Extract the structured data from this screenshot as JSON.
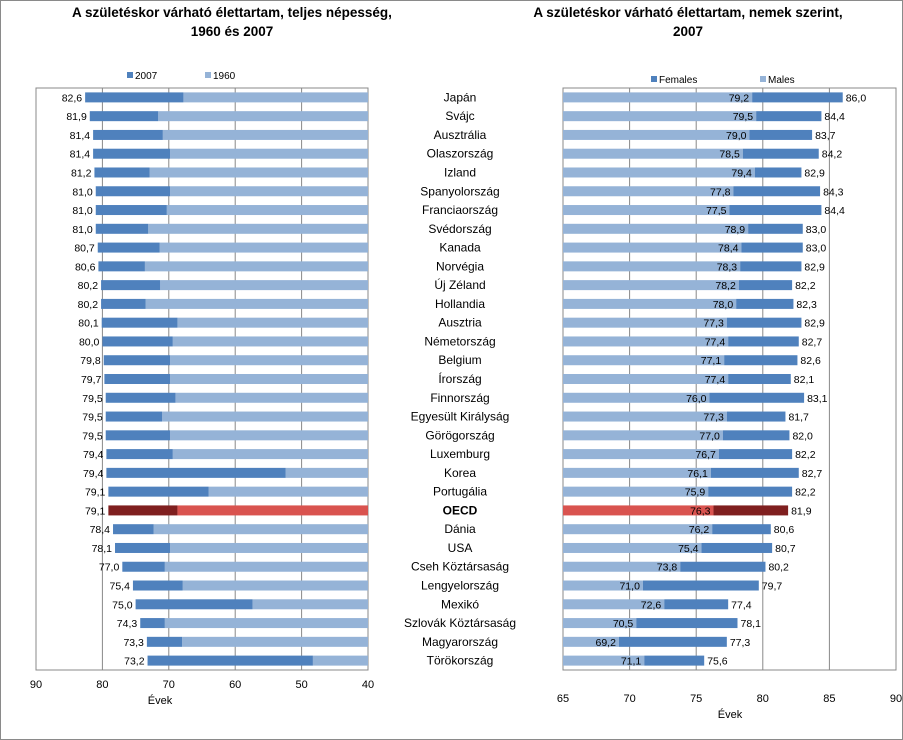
{
  "chart_data": [
    {
      "type": "bar",
      "title": "A születéskor várható élettartam, teljes népesség, 1960 és 2007",
      "title_lines": [
        "A születéskor várható élettartam, teljes népesség,",
        "1960 és 2007"
      ],
      "xlabel": "Évek",
      "xlim": [
        90,
        40
      ],
      "xticks": [
        90,
        80,
        70,
        60,
        50,
        40
      ],
      "legend_position": "top",
      "grid": true,
      "colors": {
        "2007": "#4f81bd",
        "1960": "#95b3d7",
        "highlight_2007": "#7f1f1f",
        "highlight_1960": "#d9534f"
      },
      "categories": [
        "Japán",
        "Svájc",
        "Ausztrália",
        "Olaszország",
        "Izland",
        "Spanyolország",
        "Franciaország",
        "Svédország",
        "Kanada",
        "Norvégia",
        "Új Zéland",
        "Hollandia",
        "Ausztria",
        "Németország",
        "Belgium",
        "Írország",
        "Finnország",
        "Egyesült Királyság",
        "Görögország",
        "Luxemburg",
        "Korea",
        "Portugália",
        "OECD",
        "Dánia",
        "USA",
        "Cseh Köztársaság",
        "Lengyelország",
        "Mexikó",
        "Szlovák Köztársaság",
        "Magyarország",
        "Törökország"
      ],
      "highlight": "OECD",
      "series": [
        {
          "name": "2007",
          "values": [
            82.6,
            81.9,
            81.4,
            81.4,
            81.2,
            81.0,
            81.0,
            81.0,
            80.7,
            80.6,
            80.2,
            80.2,
            80.1,
            80.0,
            79.8,
            79.7,
            79.5,
            79.5,
            79.5,
            79.4,
            79.4,
            79.1,
            79.1,
            78.4,
            78.1,
            77.0,
            75.4,
            75.0,
            74.3,
            73.3,
            73.2
          ]
        },
        {
          "name": "1960",
          "values": [
            67.8,
            71.6,
            70.9,
            69.8,
            72.9,
            69.8,
            70.3,
            73.1,
            71.4,
            73.6,
            71.3,
            73.5,
            68.7,
            69.4,
            69.8,
            69.8,
            69.0,
            71.0,
            69.8,
            69.4,
            52.4,
            64.0,
            68.7,
            72.3,
            69.8,
            70.6,
            67.9,
            57.4,
            70.6,
            68.0,
            48.3
          ]
        }
      ],
      "data_labels": [
        "82,6",
        "81,9",
        "81,4",
        "81,4",
        "81,2",
        "81,0",
        "81,0",
        "81,0",
        "80,7",
        "80,6",
        "80,2",
        "80,2",
        "80,1",
        "80,0",
        "79,8",
        "79,7",
        "79,5",
        "79,5",
        "79,5",
        "79,4",
        "79,4",
        "79,1",
        "79,1",
        "78,4",
        "78,1",
        "77,0",
        "75,4",
        "75,0",
        "74,3",
        "73,3",
        "73,2"
      ]
    },
    {
      "type": "bar",
      "title": "A születéskor várható élettartam, nemek szerint, 2007",
      "title_lines": [
        "A születéskor várható élettartam, nemek szerint,",
        "2007"
      ],
      "xlabel": "Évek",
      "xlim": [
        65,
        90
      ],
      "xticks": [
        65,
        70,
        75,
        80,
        85,
        90
      ],
      "legend_position": "top",
      "grid": true,
      "colors": {
        "Females": "#4f81bd",
        "Males": "#95b3d7",
        "highlight_Females": "#7f1f1f",
        "highlight_Males": "#d9534f"
      },
      "categories": [
        "Japán",
        "Svájc",
        "Ausztrália",
        "Olaszország",
        "Izland",
        "Spanyolország",
        "Franciaország",
        "Svédország",
        "Kanada",
        "Norvégia",
        "Új Zéland",
        "Hollandia",
        "Ausztria",
        "Németország",
        "Belgium",
        "Írország",
        "Finnország",
        "Egyesült Királyság",
        "Görögország",
        "Luxemburg",
        "Korea",
        "Portugália",
        "OECD",
        "Dánia",
        "USA",
        "Cseh Köztársaság",
        "Lengyelország",
        "Mexikó",
        "Szlovák Köztársaság",
        "Magyarország",
        "Törökország"
      ],
      "highlight": "OECD",
      "series": [
        {
          "name": "Males",
          "values": [
            79.2,
            79.5,
            79.0,
            78.5,
            79.4,
            77.8,
            77.5,
            78.9,
            78.4,
            78.3,
            78.2,
            78.0,
            77.3,
            77.4,
            77.1,
            77.4,
            76.0,
            77.3,
            77.0,
            76.7,
            76.1,
            75.9,
            76.3,
            76.2,
            75.4,
            73.8,
            71.0,
            72.6,
            70.5,
            69.2,
            71.1
          ],
          "labels": [
            "79,2",
            "79,5",
            "79,0",
            "78,5",
            "79,4",
            "77,8",
            "77,5",
            "78,9",
            "78,4",
            "78,3",
            "78,2",
            "78,0",
            "77,3",
            "77,4",
            "77,1",
            "77,4",
            "76,0",
            "77,3",
            "77,0",
            "76,7",
            "76,1",
            "75,9",
            "76,3",
            "76,2",
            "75,4",
            "73,8",
            "71,0",
            "72,6",
            "70,5",
            "69,2",
            "71,1"
          ]
        },
        {
          "name": "Females",
          "values": [
            86.0,
            84.4,
            83.7,
            84.2,
            82.9,
            84.3,
            84.4,
            83.0,
            83.0,
            82.9,
            82.2,
            82.3,
            82.9,
            82.7,
            82.6,
            82.1,
            83.1,
            81.7,
            82.0,
            82.2,
            82.7,
            82.2,
            81.9,
            80.6,
            80.7,
            80.2,
            79.7,
            77.4,
            78.1,
            77.3,
            75.6
          ],
          "labels": [
            "86,0",
            "84,4",
            "83,7",
            "84,2",
            "82,9",
            "84,3",
            "84,4",
            "83,0",
            "83,0",
            "82,9",
            "82,2",
            "82,3",
            "82,9",
            "82,7",
            "82,6",
            "82,1",
            "83,1",
            "81,7",
            "82,0",
            "82,2",
            "82,7",
            "82,2",
            "81,9",
            "80,6",
            "80,7",
            "80,2",
            "79,7",
            "77,4",
            "78,1",
            "77,3",
            "75,6"
          ]
        }
      ]
    }
  ]
}
